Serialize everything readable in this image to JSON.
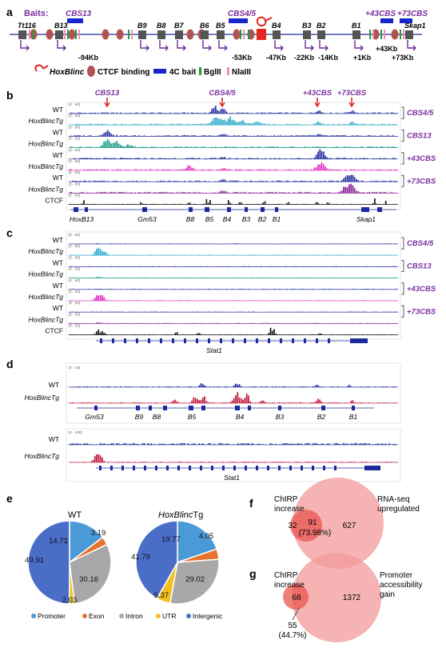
{
  "panel_a": {
    "letter": "a",
    "baits_label": "Baits:",
    "cbs_labels": [
      "CBS13",
      "CBS4/5",
      "+43CBS",
      "+73CBS"
    ],
    "genes": [
      "Tt116",
      "B13",
      "B9",
      "B8",
      "B7",
      "B6",
      "B5",
      "B4",
      "B3",
      "B2",
      "B1",
      "Skap1"
    ],
    "distances": [
      "-94Kb",
      "-53Kb",
      "-47Kb",
      "-22Kb",
      "-14Kb",
      "+1Kb",
      "+43Kb",
      "+73Kb"
    ],
    "legend": {
      "hoxblinc": "HoxBlinc",
      "ctcf": "CTCF binding",
      "bait": "4C bait",
      "bglii": "BglII",
      "nlaiii": "NlaIII"
    },
    "colors": {
      "bait": "#1726c8",
      "ctcf": "#b05452",
      "gene": "#555555",
      "hoxblinc": "#e3261e",
      "bglii": "#1b9e3a",
      "nlaiii": "#f28bbb",
      "arrow": "#6a2c9c",
      "axis": "#6f7bbf"
    }
  },
  "panel_b": {
    "letter": "b",
    "top_labels": [
      "CBS13",
      "CBS4/5",
      "+43CBS",
      "+73CBS"
    ],
    "tracks": [
      {
        "label": "WT",
        "italic": false,
        "color": "#1d2a9a",
        "scale": "[0 - 50]"
      },
      {
        "label": "HoxBlincTg",
        "italic": true,
        "color": "#2aa8c8",
        "scale": "[0 - 50]"
      },
      {
        "label": "WT",
        "italic": false,
        "color": "#1d2a9a",
        "scale": "[0 - 50]"
      },
      {
        "label": "HoxBlincTg",
        "italic": true,
        "color": "#1a9a8a",
        "scale": "[0 - 50]"
      },
      {
        "label": "WT",
        "italic": false,
        "color": "#1d2a9a",
        "scale": "[0 - 50]"
      },
      {
        "label": "HoxBlincTg",
        "italic": true,
        "color": "#e02ec0",
        "scale": "[0 - 50]"
      },
      {
        "label": "WT",
        "italic": false,
        "color": "#1d2a9a",
        "scale": "[0 - 50]"
      },
      {
        "label": "HoxBlincTg",
        "italic": true,
        "color": "#8a1a9a",
        "scale": "[0 - 50]"
      },
      {
        "label": "CTCF",
        "italic": false,
        "color": "#111111",
        "scale": "[0 - 50]"
      }
    ],
    "bracket_labels": [
      "CBS4/5",
      "CBS13",
      "+43CBS",
      "+73CBS"
    ],
    "genes": [
      "HoxB13",
      "Gm53",
      "B8",
      "B5",
      "B4",
      "B3",
      "B2",
      "B1",
      "Skap1"
    ]
  },
  "panel_c": {
    "letter": "c",
    "tracks": [
      {
        "label": "WT",
        "italic": false
      },
      {
        "label": "HoxBlincTg",
        "italic": true
      },
      {
        "label": "WT",
        "italic": false
      },
      {
        "label": "HoxBlincTg",
        "italic": true
      },
      {
        "label": "WT",
        "italic": false
      },
      {
        "label": "HoxBlincTg",
        "italic": true
      },
      {
        "label": "WT",
        "italic": false
      },
      {
        "label": "HoxBlincTg",
        "italic": true
      },
      {
        "label": "CTCF",
        "italic": false
      }
    ],
    "bracket_labels": [
      "CBS4/5",
      "CBS13",
      "+43CBS",
      "+73CBS"
    ],
    "gene": "Stat1",
    "scale": "[0 - 50]"
  },
  "panel_d": {
    "letter": "d",
    "top": {
      "wt": "WT",
      "tg": "HoxBlincTg",
      "scale": "[0 - 15]",
      "genes": [
        "Gm53",
        "B9",
        "B8",
        "B5",
        "B4",
        "B3",
        "B2",
        "B1"
      ]
    },
    "bottom": {
      "wt": "WT",
      "tg": "HoxBlincTg",
      "scale": "[0 - 100]",
      "gene": "Stat1"
    },
    "colors": {
      "wt": "#1d2a9a",
      "tg": "#c0163a"
    }
  },
  "panel_e": {
    "letter": "e",
    "chart_data": [
      {
        "type": "pie",
        "title": "WT",
        "categories": [
          "Promoter",
          "Exon",
          "Intron",
          "UTR",
          "Intergenic"
        ],
        "values": [
          14.71,
          3.19,
          30.16,
          2.03,
          49.91
        ],
        "labels": [
          "14.71",
          "3.19",
          "30.16",
          "2.03",
          "49.91"
        ]
      },
      {
        "type": "pie",
        "title": "HoxBlincTg",
        "categories": [
          "Promoter",
          "Exon",
          "Intron",
          "UTR",
          "Intergenic"
        ],
        "values": [
          19.77,
          4.05,
          29.02,
          5.37,
          41.79
        ],
        "labels": [
          "19.77",
          "4.05",
          "29.02",
          "5.37",
          "41.79"
        ]
      }
    ],
    "legend": [
      "Promoter",
      "Exon",
      "Intron",
      "UTR",
      "Intergenic"
    ],
    "colors": [
      "#4a9ad8",
      "#e8742c",
      "#a8a8a8",
      "#f4c020",
      "#4a6ec8"
    ]
  },
  "panel_f": {
    "letter": "f",
    "left_label": [
      "ChIRP",
      "increase"
    ],
    "right_label": [
      "RNA-seq",
      "upregulated"
    ],
    "left_only": "32",
    "overlap": "91",
    "overlap_pct": "(73.98%)",
    "right_only": "627"
  },
  "panel_g": {
    "letter": "g",
    "left_label": [
      "ChIRP",
      "increase"
    ],
    "right_label": [
      "Promoter",
      "accessibility",
      "gain"
    ],
    "left_only": "68",
    "right_only": "1372",
    "overlap": "55",
    "overlap_pct": "(44.7%)"
  }
}
